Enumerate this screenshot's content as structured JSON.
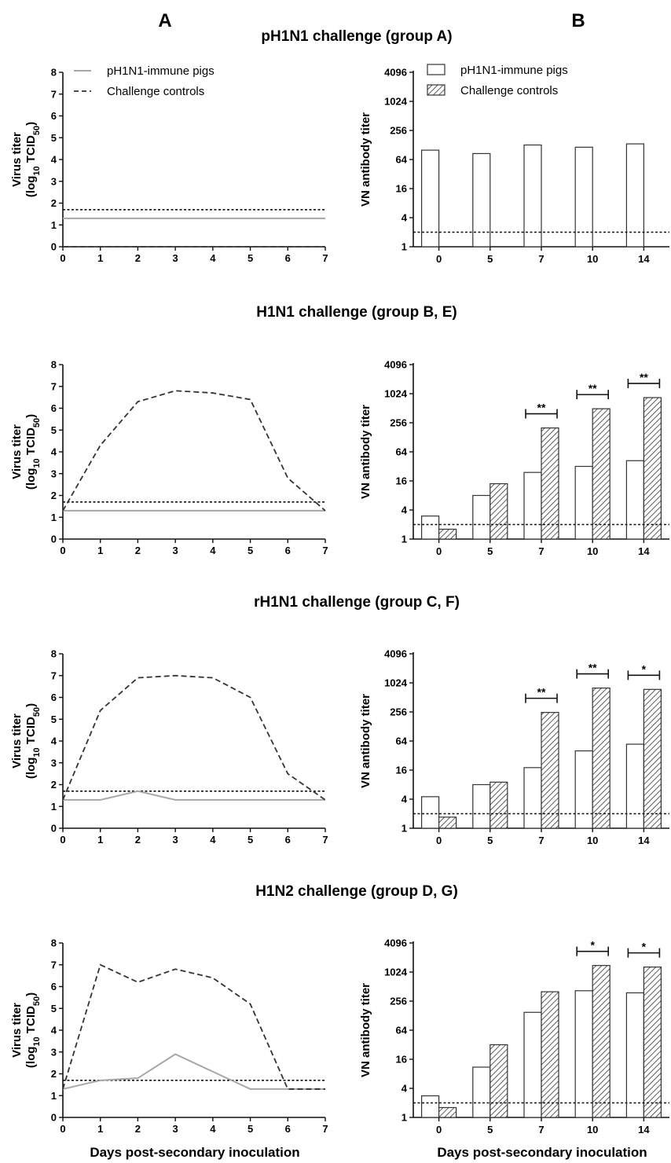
{
  "panel_labels": [
    "A",
    "B"
  ],
  "x_axis_label": "Days post-secondary inoculation",
  "line_ylabel_main": "Virus titer",
  "line_ylabel_sub_prefix": "(log",
  "line_ylabel_sub_base": "10",
  "line_ylabel_sub_mid": " TCID",
  "line_ylabel_sub_50": "50",
  "line_ylabel_sub_suffix": ")",
  "bar_ylabel": "VN antibody titer",
  "legend": {
    "immune": "pH1N1-immune pigs",
    "controls": "Challenge controls"
  },
  "colors": {
    "immune_line": "#a6a6a6",
    "control_line": "#333333",
    "threshold_line": "#111111",
    "bar_edge": "#333333",
    "hatch": "#333333"
  },
  "chart_data": [
    {
      "type": "line",
      "title": "pH1N1 challenge (group A)",
      "x": [
        0,
        1,
        2,
        3,
        4,
        5,
        6,
        7
      ],
      "xlim": [
        0,
        7
      ],
      "ylim": [
        0,
        8
      ],
      "yticks": [
        0,
        1,
        2,
        3,
        4,
        5,
        6,
        7,
        8
      ],
      "threshold": 1.7,
      "show_legend": true,
      "series": [
        {
          "name": "pH1N1-immune pigs",
          "values": [
            1.3,
            1.3,
            1.3,
            1.3,
            1.3,
            1.3,
            1.3,
            1.3
          ]
        },
        {
          "name": "Challenge controls",
          "values": [
            0,
            0,
            0,
            0,
            0,
            0,
            0,
            0
          ]
        }
      ]
    },
    {
      "type": "bar",
      "title": "pH1N1 challenge (group A)",
      "categories": [
        "0",
        "5",
        "7",
        "10",
        "14"
      ],
      "yscale": "log2",
      "yticks": [
        1,
        4,
        16,
        64,
        256,
        1024,
        4096
      ],
      "threshold": 2,
      "show_legend": true,
      "series": [
        {
          "name": "pH1N1-immune pigs",
          "values": [
            100,
            85,
            128,
            115,
            135
          ]
        },
        {
          "name": "Challenge controls",
          "values": [
            null,
            null,
            null,
            null,
            null
          ]
        }
      ],
      "significance": []
    },
    {
      "type": "line",
      "title": "H1N1 challenge (group B, E)",
      "x": [
        0,
        1,
        2,
        3,
        4,
        5,
        6,
        7
      ],
      "xlim": [
        0,
        7
      ],
      "ylim": [
        0,
        8
      ],
      "yticks": [
        0,
        1,
        2,
        3,
        4,
        5,
        6,
        7,
        8
      ],
      "threshold": 1.7,
      "show_legend": false,
      "series": [
        {
          "name": "pH1N1-immune pigs",
          "values": [
            1.3,
            1.3,
            1.3,
            1.3,
            1.3,
            1.3,
            1.3,
            1.3
          ]
        },
        {
          "name": "Challenge controls",
          "values": [
            1.3,
            4.3,
            6.3,
            6.8,
            6.7,
            6.4,
            2.8,
            1.3
          ]
        }
      ]
    },
    {
      "type": "bar",
      "title": "H1N1 challenge (group B, E)",
      "categories": [
        "0",
        "5",
        "7",
        "10",
        "14"
      ],
      "yscale": "log2",
      "yticks": [
        1,
        4,
        16,
        64,
        256,
        1024,
        4096
      ],
      "threshold": 2,
      "show_legend": false,
      "series": [
        {
          "name": "pH1N1-immune pigs",
          "values": [
            3,
            8,
            24,
            32,
            42
          ]
        },
        {
          "name": "Challenge controls",
          "values": [
            1.6,
            14,
            200,
            500,
            850
          ]
        }
      ],
      "significance": [
        {
          "category": "7",
          "label": "**"
        },
        {
          "category": "10",
          "label": "**"
        },
        {
          "category": "14",
          "label": "**"
        }
      ]
    },
    {
      "type": "line",
      "title": "rH1N1 challenge (group C, F)",
      "x": [
        0,
        1,
        2,
        3,
        4,
        5,
        6,
        7
      ],
      "xlim": [
        0,
        7
      ],
      "ylim": [
        0,
        8
      ],
      "yticks": [
        0,
        1,
        2,
        3,
        4,
        5,
        6,
        7,
        8
      ],
      "threshold": 1.7,
      "show_legend": false,
      "series": [
        {
          "name": "pH1N1-immune pigs",
          "values": [
            1.3,
            1.3,
            1.7,
            1.3,
            1.3,
            1.3,
            1.3,
            1.3
          ]
        },
        {
          "name": "Challenge controls",
          "values": [
            1.3,
            5.4,
            6.9,
            7.0,
            6.9,
            6.0,
            2.5,
            1.3
          ]
        }
      ]
    },
    {
      "type": "bar",
      "title": "rH1N1 challenge (group C, F)",
      "categories": [
        "0",
        "5",
        "7",
        "10",
        "14"
      ],
      "yscale": "log2",
      "yticks": [
        1,
        4,
        16,
        64,
        256,
        1024,
        4096
      ],
      "threshold": 2,
      "show_legend": false,
      "series": [
        {
          "name": "pH1N1-immune pigs",
          "values": [
            4.5,
            8,
            18,
            40,
            55
          ]
        },
        {
          "name": "Challenge controls",
          "values": [
            1.7,
            9,
            250,
            800,
            750
          ]
        }
      ],
      "significance": [
        {
          "category": "7",
          "label": "**"
        },
        {
          "category": "10",
          "label": "**"
        },
        {
          "category": "14",
          "label": "*"
        }
      ]
    },
    {
      "type": "line",
      "title": "H1N2 challenge (group D, G)",
      "x": [
        0,
        1,
        2,
        3,
        4,
        5,
        6,
        7
      ],
      "xlim": [
        0,
        7
      ],
      "ylim": [
        0,
        8
      ],
      "yticks": [
        0,
        1,
        2,
        3,
        4,
        5,
        6,
        7,
        8
      ],
      "threshold": 1.7,
      "show_legend": false,
      "series": [
        {
          "name": "pH1N1-immune pigs",
          "values": [
            1.3,
            1.7,
            1.8,
            2.9,
            2.1,
            1.3,
            1.3,
            1.3
          ]
        },
        {
          "name": "Challenge controls",
          "values": [
            1.3,
            7.0,
            6.2,
            6.8,
            6.4,
            5.2,
            1.3,
            1.3
          ]
        }
      ]
    },
    {
      "type": "bar",
      "title": "H1N2 challenge (group D, G)",
      "categories": [
        "0",
        "5",
        "7",
        "10",
        "14"
      ],
      "yscale": "log2",
      "yticks": [
        1,
        4,
        16,
        64,
        256,
        1024,
        4096
      ],
      "threshold": 2,
      "show_legend": false,
      "series": [
        {
          "name": "pH1N1-immune pigs",
          "values": [
            2.8,
            11,
            150,
            420,
            380
          ]
        },
        {
          "name": "Challenge controls",
          "values": [
            1.6,
            32,
            400,
            1400,
            1300
          ]
        }
      ],
      "significance": [
        {
          "category": "10",
          "label": "*"
        },
        {
          "category": "14",
          "label": "*"
        }
      ]
    }
  ]
}
